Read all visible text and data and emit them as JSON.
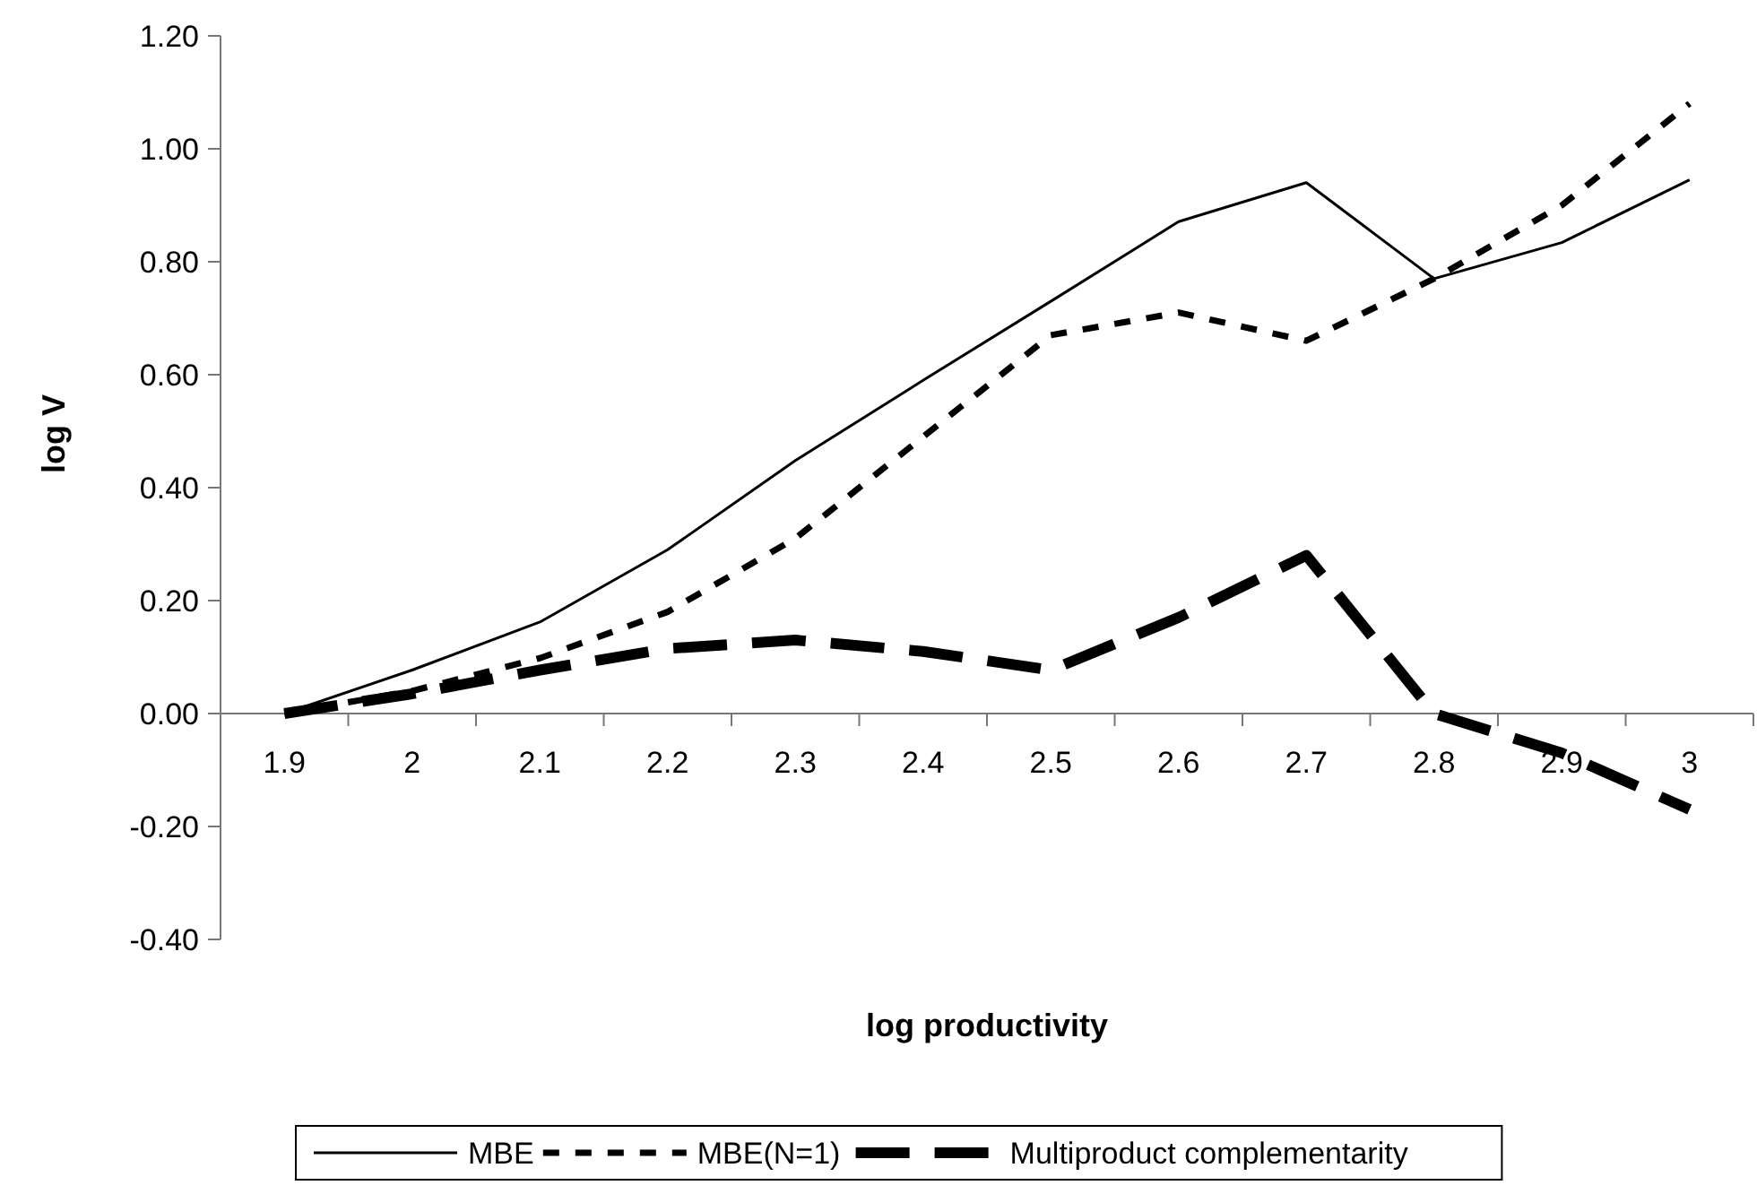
{
  "chart_data": {
    "type": "line",
    "xlabel": "log productivity",
    "ylabel": "log V",
    "categories": [
      "1.9",
      "2",
      "2.1",
      "2.2",
      "2.3",
      "2.4",
      "2.5",
      "2.6",
      "2.7",
      "2.8",
      "2.9",
      "3"
    ],
    "ylim": [
      -0.4,
      1.2
    ],
    "yticks": [
      {
        "value": -0.4,
        "label": "-0.40"
      },
      {
        "value": -0.2,
        "label": "-0.20"
      },
      {
        "value": 0,
        "label": "0.00"
      },
      {
        "value": 0.2,
        "label": "0.20"
      },
      {
        "value": 0.4,
        "label": "0.40"
      },
      {
        "value": 0.6,
        "label": "0.60"
      },
      {
        "value": 0.8,
        "label": "0.80"
      },
      {
        "value": 1,
        "label": "1.00"
      },
      {
        "value": 1.2,
        "label": "1.20"
      }
    ],
    "grid": false,
    "legend": "bottom",
    "marker": "none",
    "series": [
      {
        "name": "MBE",
        "color": "#000000",
        "line_style": "solid",
        "values": [
          0,
          0.077,
          0.162,
          0.29,
          0.448,
          0.59,
          0.73,
          0.871,
          0.94,
          0.77,
          0.834,
          0.945
        ]
      },
      {
        "name": "MBE(N=1)",
        "color": "#000000",
        "line_style": "dashed",
        "values": [
          0,
          0.04,
          0.098,
          0.18,
          0.31,
          0.49,
          0.67,
          0.71,
          0.66,
          0.77,
          0.9,
          1.08
        ]
      },
      {
        "name": "Multiproduct complementarity",
        "color": "#000000",
        "line_style": "dashed",
        "values": [
          0,
          0.035,
          0.077,
          0.115,
          0.13,
          0.11,
          0.077,
          0.17,
          0.28,
          0,
          -0.07,
          -0.17
        ]
      }
    ]
  }
}
